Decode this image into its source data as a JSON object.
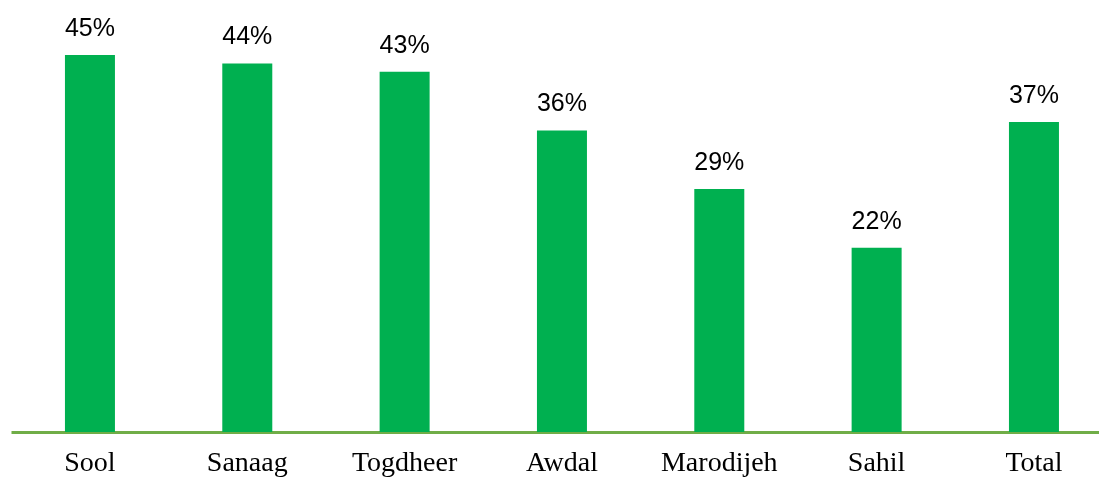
{
  "chart_data": {
    "type": "bar",
    "categories": [
      "Sool",
      "Sanaag",
      "Togdheer",
      "Awdal",
      "Marodijeh",
      "Sahil",
      "Total"
    ],
    "values": [
      45,
      44,
      43,
      36,
      29,
      22,
      37
    ],
    "value_labels": [
      "45%",
      "44%",
      "43%",
      "36%",
      "29%",
      "22%",
      "37%"
    ],
    "color": "#00b050",
    "tick_labels": "x"
  }
}
